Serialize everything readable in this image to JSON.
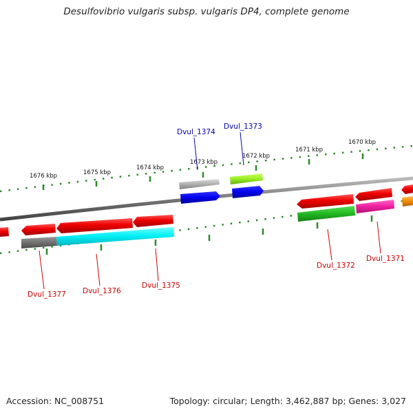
{
  "title": "Desulfovibrio vulgaris subsp. vulgaris DP4, complete genome",
  "footer": {
    "accession": "Accession: NC_008751",
    "topology": "Topology: circular; Length: 3,462,887 bp; Genes: 3,027"
  },
  "scale": {
    "ticks": [
      "1676 kbp",
      "1675 kbp",
      "1674 kbp",
      "1673 kbp",
      "1672 kbp",
      "1671 kbp",
      "1670 kbp"
    ]
  },
  "genes": {
    "labels_forward": [
      "Dvul_1374",
      "Dvul_1373"
    ],
    "labels_reverse": [
      "Dvul_1377",
      "Dvul_1376",
      "Dvul_1375",
      "Dvul_1372",
      "Dvul_1371"
    ]
  },
  "colors": {
    "cds_red": "#e00000",
    "cds_blue": "#0000e0",
    "cds_cyan": "#00e6f0",
    "cds_green": "#22b822",
    "cds_pink": "#f020a0",
    "cds_lime": "#99ee22",
    "cds_gray": "#9a9a9a",
    "cds_orange": "#f08a00",
    "tick_green": "#2a8a2a",
    "label_red": "#cc0000",
    "label_blue": "#0000aa"
  }
}
